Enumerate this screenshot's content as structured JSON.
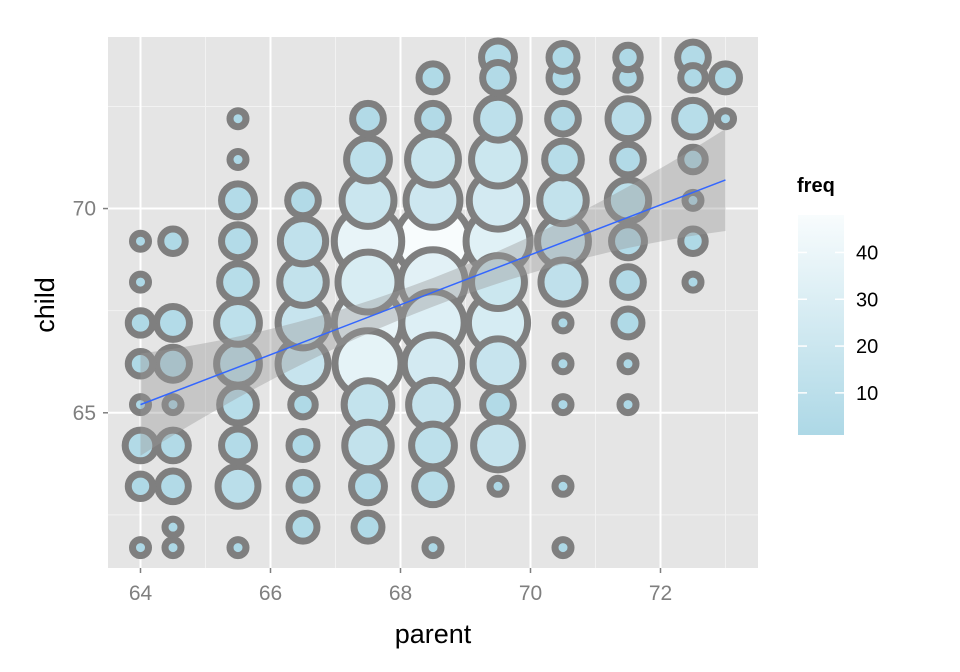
{
  "chart_data": {
    "type": "scatter",
    "title": "",
    "xlabel": "parent",
    "ylabel": "child",
    "xlim": [
      63.5,
      73.5
    ],
    "ylim": [
      61.2,
      74.2
    ],
    "x_ticks": [
      64,
      66,
      68,
      70,
      72
    ],
    "y_ticks": [
      65,
      70
    ],
    "grid": true,
    "legend": {
      "title": "freq",
      "position": "right",
      "type": "colorbar",
      "range": [
        1,
        48
      ],
      "ticks": [
        10,
        20,
        30,
        40
      ],
      "color_low": "#add8e6",
      "color_high": "#f8fcfd"
    },
    "points": [
      {
        "x": 64.0,
        "y": 61.7,
        "freq": 1
      },
      {
        "x": 64.0,
        "y": 63.2,
        "freq": 2
      },
      {
        "x": 64.0,
        "y": 64.2,
        "freq": 4
      },
      {
        "x": 64.0,
        "y": 65.2,
        "freq": 1
      },
      {
        "x": 64.0,
        "y": 66.2,
        "freq": 2
      },
      {
        "x": 64.0,
        "y": 67.2,
        "freq": 2
      },
      {
        "x": 64.0,
        "y": 68.2,
        "freq": 1
      },
      {
        "x": 64.0,
        "y": 69.2,
        "freq": 1
      },
      {
        "x": 64.5,
        "y": 61.7,
        "freq": 1
      },
      {
        "x": 64.5,
        "y": 62.2,
        "freq": 1
      },
      {
        "x": 64.5,
        "y": 63.2,
        "freq": 4
      },
      {
        "x": 64.5,
        "y": 64.2,
        "freq": 4
      },
      {
        "x": 64.5,
        "y": 65.2,
        "freq": 1
      },
      {
        "x": 64.5,
        "y": 66.2,
        "freq": 5
      },
      {
        "x": 64.5,
        "y": 67.2,
        "freq": 5
      },
      {
        "x": 64.5,
        "y": 69.2,
        "freq": 2
      },
      {
        "x": 65.5,
        "y": 61.7,
        "freq": 1
      },
      {
        "x": 65.5,
        "y": 63.2,
        "freq": 9
      },
      {
        "x": 65.5,
        "y": 64.2,
        "freq": 5
      },
      {
        "x": 65.5,
        "y": 65.2,
        "freq": 7
      },
      {
        "x": 65.5,
        "y": 66.2,
        "freq": 11
      },
      {
        "x": 65.5,
        "y": 67.2,
        "freq": 11
      },
      {
        "x": 65.5,
        "y": 68.2,
        "freq": 7
      },
      {
        "x": 65.5,
        "y": 69.2,
        "freq": 5
      },
      {
        "x": 65.5,
        "y": 70.2,
        "freq": 5
      },
      {
        "x": 65.5,
        "y": 71.2,
        "freq": 1
      },
      {
        "x": 65.5,
        "y": 72.2,
        "freq": 1
      },
      {
        "x": 66.5,
        "y": 62.2,
        "freq": 3
      },
      {
        "x": 66.5,
        "y": 63.2,
        "freq": 3
      },
      {
        "x": 66.5,
        "y": 64.2,
        "freq": 3
      },
      {
        "x": 66.5,
        "y": 65.2,
        "freq": 2
      },
      {
        "x": 66.5,
        "y": 66.2,
        "freq": 17
      },
      {
        "x": 66.5,
        "y": 67.2,
        "freq": 17
      },
      {
        "x": 66.5,
        "y": 68.2,
        "freq": 14
      },
      {
        "x": 66.5,
        "y": 69.2,
        "freq": 13
      },
      {
        "x": 66.5,
        "y": 70.2,
        "freq": 4
      },
      {
        "x": 67.5,
        "y": 62.2,
        "freq": 3
      },
      {
        "x": 67.5,
        "y": 63.2,
        "freq": 5
      },
      {
        "x": 67.5,
        "y": 64.2,
        "freq": 14
      },
      {
        "x": 67.5,
        "y": 65.2,
        "freq": 15
      },
      {
        "x": 67.5,
        "y": 66.2,
        "freq": 36
      },
      {
        "x": 67.5,
        "y": 67.2,
        "freq": 38
      },
      {
        "x": 67.5,
        "y": 68.2,
        "freq": 28
      },
      {
        "x": 67.5,
        "y": 69.2,
        "freq": 38
      },
      {
        "x": 67.5,
        "y": 70.2,
        "freq": 19
      },
      {
        "x": 67.5,
        "y": 71.2,
        "freq": 11
      },
      {
        "x": 67.5,
        "y": 72.2,
        "freq": 4
      },
      {
        "x": 68.5,
        "y": 61.7,
        "freq": 1
      },
      {
        "x": 68.5,
        "y": 63.2,
        "freq": 7
      },
      {
        "x": 68.5,
        "y": 64.2,
        "freq": 11
      },
      {
        "x": 68.5,
        "y": 65.2,
        "freq": 16
      },
      {
        "x": 68.5,
        "y": 66.2,
        "freq": 25
      },
      {
        "x": 68.5,
        "y": 67.2,
        "freq": 31
      },
      {
        "x": 68.5,
        "y": 68.2,
        "freq": 34
      },
      {
        "x": 68.5,
        "y": 69.2,
        "freq": 48
      },
      {
        "x": 68.5,
        "y": 70.2,
        "freq": 21
      },
      {
        "x": 68.5,
        "y": 71.2,
        "freq": 18
      },
      {
        "x": 68.5,
        "y": 72.2,
        "freq": 4
      },
      {
        "x": 68.5,
        "y": 73.2,
        "freq": 3
      },
      {
        "x": 69.5,
        "y": 63.2,
        "freq": 1
      },
      {
        "x": 69.5,
        "y": 64.2,
        "freq": 16
      },
      {
        "x": 69.5,
        "y": 65.2,
        "freq": 4
      },
      {
        "x": 69.5,
        "y": 66.2,
        "freq": 17
      },
      {
        "x": 69.5,
        "y": 67.2,
        "freq": 27
      },
      {
        "x": 69.5,
        "y": 68.2,
        "freq": 20
      },
      {
        "x": 69.5,
        "y": 69.2,
        "freq": 33
      },
      {
        "x": 69.5,
        "y": 70.2,
        "freq": 25
      },
      {
        "x": 69.5,
        "y": 71.2,
        "freq": 20
      },
      {
        "x": 69.5,
        "y": 72.2,
        "freq": 11
      },
      {
        "x": 69.5,
        "y": 73.2,
        "freq": 4
      },
      {
        "x": 69.5,
        "y": 73.7,
        "freq": 5
      },
      {
        "x": 70.5,
        "y": 61.7,
        "freq": 1
      },
      {
        "x": 70.5,
        "y": 63.2,
        "freq": 1
      },
      {
        "x": 70.5,
        "y": 65.2,
        "freq": 1
      },
      {
        "x": 70.5,
        "y": 66.2,
        "freq": 1
      },
      {
        "x": 70.5,
        "y": 67.2,
        "freq": 1
      },
      {
        "x": 70.5,
        "y": 68.2,
        "freq": 12
      },
      {
        "x": 70.5,
        "y": 69.2,
        "freq": 18
      },
      {
        "x": 70.5,
        "y": 70.2,
        "freq": 14
      },
      {
        "x": 70.5,
        "y": 71.2,
        "freq": 7
      },
      {
        "x": 70.5,
        "y": 72.2,
        "freq": 4
      },
      {
        "x": 70.5,
        "y": 73.2,
        "freq": 3
      },
      {
        "x": 70.5,
        "y": 73.7,
        "freq": 3
      },
      {
        "x": 71.5,
        "y": 65.2,
        "freq": 1
      },
      {
        "x": 71.5,
        "y": 66.2,
        "freq": 1
      },
      {
        "x": 71.5,
        "y": 67.2,
        "freq": 3
      },
      {
        "x": 71.5,
        "y": 68.2,
        "freq": 4
      },
      {
        "x": 71.5,
        "y": 69.2,
        "freq": 5
      },
      {
        "x": 71.5,
        "y": 70.2,
        "freq": 10
      },
      {
        "x": 71.5,
        "y": 71.2,
        "freq": 4
      },
      {
        "x": 71.5,
        "y": 72.2,
        "freq": 9
      },
      {
        "x": 71.5,
        "y": 73.2,
        "freq": 2
      },
      {
        "x": 71.5,
        "y": 73.7,
        "freq": 2
      },
      {
        "x": 72.5,
        "y": 68.2,
        "freq": 1
      },
      {
        "x": 72.5,
        "y": 69.2,
        "freq": 2
      },
      {
        "x": 72.5,
        "y": 70.2,
        "freq": 1
      },
      {
        "x": 72.5,
        "y": 71.2,
        "freq": 2
      },
      {
        "x": 72.5,
        "y": 72.2,
        "freq": 7
      },
      {
        "x": 72.5,
        "y": 73.2,
        "freq": 2
      },
      {
        "x": 72.5,
        "y": 73.7,
        "freq": 4
      },
      {
        "x": 73.0,
        "y": 72.2,
        "freq": 1
      },
      {
        "x": 73.0,
        "y": 73.2,
        "freq": 3
      }
    ],
    "smooth": {
      "method": "linear",
      "x_range": [
        64.0,
        73.0
      ],
      "y_start": 65.2,
      "y_end": 70.7,
      "se": true,
      "color": "#3366ff"
    },
    "colors": {
      "panel_bg": "#e5e5e5",
      "grid_major": "#ffffff",
      "grid_minor": "#f2f2f2",
      "point_outline": "#7f7f7f",
      "ribbon": "#999999"
    }
  }
}
